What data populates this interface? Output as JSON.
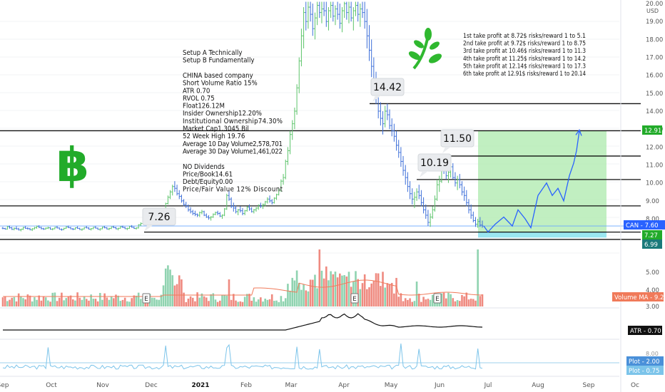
{
  "chart_data": {
    "type": "candlestick",
    "symbol": "CAN",
    "currency": "USD",
    "price_axis": {
      "range": [
        3.2,
        20.1
      ],
      "ticks": [
        "20.00",
        "19.00",
        "18.00",
        "17.00",
        "16.00",
        "15.00",
        "14.00",
        "13.00",
        "12.00",
        "11.00",
        "10.00",
        "9.00",
        "8.00",
        "5.00",
        "4.00",
        "3.00"
      ]
    },
    "time_axis": {
      "labels": [
        "Sep",
        "Oct",
        "Nov",
        "Dec",
        "2021",
        "Feb",
        "Mar",
        "Apr",
        "May",
        "Jun",
        "Jul",
        "Aug",
        "Sep",
        "Oc"
      ]
    },
    "candles": [
      [
        7.48,
        7.55,
        7.42,
        7.46
      ],
      [
        7.46,
        7.5,
        7.4,
        7.43
      ],
      [
        7.43,
        7.6,
        7.4,
        7.56
      ],
      [
        7.56,
        7.62,
        7.45,
        7.5
      ],
      [
        7.5,
        7.55,
        7.38,
        7.41
      ],
      [
        7.41,
        7.52,
        7.36,
        7.47
      ],
      [
        7.47,
        7.58,
        7.4,
        7.44
      ],
      [
        7.44,
        7.5,
        7.35,
        7.38
      ],
      [
        7.38,
        7.45,
        7.3,
        7.42
      ],
      [
        7.42,
        7.55,
        7.38,
        7.52
      ],
      [
        7.52,
        7.6,
        7.44,
        7.47
      ],
      [
        7.47,
        7.53,
        7.4,
        7.45
      ],
      [
        7.45,
        7.5,
        7.36,
        7.39
      ],
      [
        7.39,
        7.48,
        7.32,
        7.44
      ],
      [
        7.44,
        7.55,
        7.41,
        7.5
      ],
      [
        7.5,
        7.62,
        7.45,
        7.58
      ],
      [
        7.58,
        7.64,
        7.48,
        7.52
      ],
      [
        7.52,
        7.56,
        7.41,
        7.45
      ],
      [
        7.45,
        7.5,
        7.38,
        7.43
      ],
      [
        7.43,
        7.52,
        7.4,
        7.48
      ],
      [
        7.48,
        7.56,
        7.43,
        7.5
      ],
      [
        7.5,
        7.54,
        7.4,
        7.42
      ],
      [
        7.42,
        7.48,
        7.36,
        7.44
      ],
      [
        7.44,
        7.55,
        7.42,
        7.53
      ],
      [
        7.53,
        7.6,
        7.46,
        7.49
      ],
      [
        7.49,
        7.52,
        7.4,
        7.41
      ],
      [
        7.41,
        7.46,
        7.34,
        7.4
      ],
      [
        7.4,
        7.5,
        7.37,
        7.47
      ],
      [
        7.47,
        7.58,
        7.44,
        7.55
      ],
      [
        7.55,
        7.62,
        7.48,
        7.51
      ],
      [
        7.51,
        7.55,
        7.42,
        7.44
      ],
      [
        7.44,
        7.49,
        7.37,
        7.42
      ],
      [
        7.42,
        7.52,
        7.39,
        7.5
      ],
      [
        7.5,
        7.58,
        7.45,
        7.47
      ],
      [
        7.47,
        7.5,
        7.38,
        7.4
      ],
      [
        7.4,
        7.46,
        7.33,
        7.43
      ],
      [
        7.43,
        7.54,
        7.41,
        7.52
      ],
      [
        7.52,
        7.6,
        7.47,
        7.49
      ],
      [
        7.49,
        7.53,
        7.4,
        7.42
      ],
      [
        7.42,
        7.48,
        7.35,
        7.45
      ],
      [
        7.45,
        7.55,
        7.42,
        7.53
      ],
      [
        7.53,
        7.59,
        7.46,
        7.48
      ],
      [
        7.48,
        7.51,
        7.39,
        7.41
      ],
      [
        7.41,
        7.47,
        7.34,
        7.44
      ],
      [
        7.44,
        7.56,
        7.42,
        7.54
      ],
      [
        7.54,
        7.6,
        7.47,
        7.5
      ],
      [
        7.5,
        7.54,
        7.41,
        7.43
      ],
      [
        7.43,
        7.5,
        7.37,
        7.46
      ],
      [
        7.46,
        7.57,
        7.43,
        7.55
      ],
      [
        7.55,
        7.61,
        7.48,
        7.51
      ],
      [
        7.51,
        7.55,
        7.42,
        7.44
      ],
      [
        7.44,
        7.5,
        7.36,
        7.47
      ],
      [
        7.47,
        7.58,
        7.45,
        7.56
      ],
      [
        7.56,
        7.62,
        7.49,
        7.52
      ],
      [
        7.52,
        7.56,
        7.43,
        7.45
      ],
      [
        7.45,
        7.5,
        7.37,
        7.47
      ],
      [
        7.47,
        7.6,
        7.45,
        7.58
      ],
      [
        7.58,
        7.65,
        7.5,
        7.53
      ],
      [
        7.53,
        7.57,
        7.44,
        7.46
      ],
      [
        7.46,
        7.52,
        7.4,
        7.49
      ],
      [
        7.49,
        7.7,
        7.46,
        7.66
      ],
      [
        7.66,
        7.8,
        7.6,
        7.74
      ],
      [
        7.74,
        7.9,
        7.68,
        7.85
      ],
      [
        7.85,
        7.95,
        7.7,
        7.78
      ],
      [
        7.78,
        7.88,
        7.6,
        7.66
      ],
      [
        7.66,
        7.8,
        7.55,
        7.76
      ],
      [
        7.76,
        7.92,
        7.7,
        7.88
      ],
      [
        7.88,
        8.0,
        7.8,
        7.95
      ],
      [
        7.95,
        8.1,
        7.88,
        8.05
      ],
      [
        8.05,
        8.25,
        7.98,
        8.2
      ],
      [
        8.2,
        8.4,
        8.1,
        8.35
      ],
      [
        8.35,
        8.6,
        8.3,
        8.55
      ],
      [
        8.55,
        8.9,
        8.45,
        8.85
      ],
      [
        8.85,
        9.3,
        8.8,
        9.2
      ],
      [
        9.2,
        9.6,
        9.1,
        9.5
      ],
      [
        9.5,
        9.9,
        9.3,
        9.8
      ],
      [
        9.8,
        10.1,
        9.5,
        9.7
      ],
      [
        9.7,
        9.9,
        9.3,
        9.4
      ],
      [
        9.4,
        9.6,
        9.1,
        9.25
      ],
      [
        9.25,
        9.35,
        8.9,
        9.0
      ],
      [
        9.0,
        9.1,
        8.7,
        8.8
      ],
      [
        8.8,
        8.95,
        8.6,
        8.7
      ],
      [
        8.7,
        8.8,
        8.4,
        8.5
      ],
      [
        8.5,
        8.65,
        8.3,
        8.4
      ],
      [
        8.4,
        8.5,
        8.2,
        8.3
      ],
      [
        8.3,
        8.45,
        8.15,
        8.25
      ],
      [
        8.25,
        8.3,
        8.1,
        8.2
      ],
      [
        8.2,
        8.4,
        8.1,
        8.35
      ],
      [
        8.35,
        8.5,
        8.25,
        8.4
      ],
      [
        8.4,
        8.45,
        8.15,
        8.2
      ],
      [
        8.2,
        8.3,
        8.05,
        8.1
      ],
      [
        8.1,
        8.2,
        7.95,
        8.05
      ],
      [
        8.05,
        8.15,
        7.9,
        8.1
      ],
      [
        8.1,
        8.3,
        8.05,
        8.25
      ],
      [
        8.25,
        8.4,
        8.2,
        8.35
      ],
      [
        8.35,
        8.45,
        8.2,
        8.3
      ],
      [
        8.3,
        8.38,
        8.1,
        8.15
      ],
      [
        8.15,
        8.25,
        8.0,
        8.2
      ],
      [
        8.2,
        8.6,
        8.15,
        8.55
      ],
      [
        8.55,
        9.4,
        8.5,
        9.3
      ],
      [
        9.3,
        9.6,
        9.0,
        9.1
      ],
      [
        9.1,
        9.2,
        8.6,
        8.7
      ],
      [
        8.7,
        8.9,
        8.4,
        8.6
      ],
      [
        8.6,
        8.75,
        8.3,
        8.4
      ],
      [
        8.4,
        8.55,
        8.2,
        8.5
      ],
      [
        8.5,
        8.7,
        8.35,
        8.45
      ],
      [
        8.45,
        8.6,
        8.2,
        8.3
      ],
      [
        8.3,
        8.5,
        8.2,
        8.45
      ],
      [
        8.45,
        8.7,
        8.4,
        8.65
      ],
      [
        8.65,
        8.8,
        8.45,
        8.55
      ],
      [
        8.55,
        8.65,
        8.35,
        8.4
      ],
      [
        8.4,
        8.55,
        8.3,
        8.5
      ],
      [
        8.5,
        8.65,
        8.4,
        8.6
      ],
      [
        8.6,
        8.8,
        8.5,
        8.75
      ],
      [
        8.75,
        8.9,
        8.6,
        8.7
      ],
      [
        8.7,
        8.85,
        8.55,
        8.8
      ],
      [
        8.8,
        9.0,
        8.7,
        8.95
      ],
      [
        8.95,
        9.2,
        8.85,
        9.1
      ],
      [
        9.1,
        9.3,
        8.9,
        9.0
      ],
      [
        9.0,
        9.1,
        8.8,
        8.9
      ],
      [
        8.9,
        9.2,
        8.85,
        9.15
      ],
      [
        9.15,
        9.4,
        9.05,
        9.35
      ],
      [
        9.35,
        9.7,
        9.3,
        9.6
      ],
      [
        9.6,
        10.2,
        9.5,
        10.1
      ],
      [
        10.1,
        10.5,
        9.9,
        10.3
      ],
      [
        10.3,
        11.3,
        10.2,
        11.2
      ],
      [
        11.2,
        12.0,
        11.0,
        11.8
      ],
      [
        11.8,
        12.9,
        11.6,
        12.7
      ],
      [
        12.7,
        13.5,
        12.4,
        13.3
      ],
      [
        13.3,
        14.2,
        13.0,
        14.0
      ],
      [
        14.0,
        15.5,
        13.8,
        15.3
      ],
      [
        15.3,
        17.0,
        15.0,
        16.8
      ],
      [
        16.8,
        18.6,
        16.5,
        18.2
      ],
      [
        18.2,
        19.8,
        17.5,
        19.5
      ],
      [
        19.5,
        20.1,
        18.5,
        19.0
      ],
      [
        19.0,
        20.1,
        18.6,
        19.8
      ],
      [
        19.8,
        20.1,
        19.0,
        19.4
      ],
      [
        19.4,
        20.0,
        18.2,
        18.6
      ],
      [
        18.6,
        19.5,
        18.0,
        19.2
      ],
      [
        19.2,
        20.1,
        18.8,
        19.9
      ],
      [
        19.9,
        20.1,
        19.2,
        19.5
      ],
      [
        19.5,
        20.1,
        18.9,
        19.7
      ],
      [
        19.7,
        20.1,
        19.3,
        19.6
      ],
      [
        19.6,
        20.1,
        18.7,
        19.0
      ],
      [
        19.0,
        19.8,
        18.5,
        19.6
      ],
      [
        19.6,
        20.1,
        19.2,
        19.9
      ],
      [
        19.9,
        20.1,
        19.0,
        19.3
      ],
      [
        19.3,
        19.9,
        18.8,
        19.7
      ],
      [
        19.7,
        20.1,
        19.1,
        19.4
      ],
      [
        19.4,
        20.0,
        18.6,
        18.9
      ],
      [
        18.9,
        19.8,
        18.4,
        19.6
      ],
      [
        19.6,
        20.1,
        19.2,
        20.0
      ],
      [
        20.0,
        20.1,
        19.1,
        19.5
      ],
      [
        19.5,
        20.1,
        18.9,
        19.8
      ],
      [
        19.8,
        20.1,
        19.0,
        19.2
      ],
      [
        19.2,
        19.8,
        18.5,
        19.6
      ],
      [
        19.6,
        20.1,
        19.3,
        19.9
      ],
      [
        19.9,
        20.1,
        19.0,
        19.4
      ],
      [
        19.4,
        20.0,
        18.7,
        19.7
      ],
      [
        19.7,
        20.1,
        19.2,
        19.5
      ],
      [
        19.5,
        20.1,
        18.6,
        19.0
      ],
      [
        19.0,
        19.7,
        17.5,
        18.2
      ],
      [
        18.2,
        18.8,
        16.8,
        17.4
      ],
      [
        17.4,
        18.0,
        15.9,
        16.5
      ],
      [
        16.5,
        17.0,
        15.0,
        15.6
      ],
      [
        15.6,
        16.2,
        14.4,
        14.9
      ],
      [
        14.9,
        15.2,
        13.6,
        14.0
      ],
      [
        14.0,
        14.5,
        13.2,
        13.6
      ],
      [
        13.6,
        14.0,
        12.7,
        13.3
      ],
      [
        13.3,
        14.3,
        13.1,
        14.0
      ],
      [
        14.0,
        14.42,
        13.5,
        13.8
      ],
      [
        13.8,
        14.1,
        13.0,
        13.2
      ],
      [
        13.2,
        13.6,
        12.6,
        12.9
      ],
      [
        12.9,
        13.3,
        12.3,
        12.6
      ],
      [
        12.6,
        12.9,
        11.8,
        12.1
      ],
      [
        12.1,
        12.4,
        11.4,
        11.7
      ],
      [
        11.7,
        12.0,
        10.9,
        11.2
      ],
      [
        11.2,
        11.5,
        10.4,
        10.7
      ],
      [
        10.7,
        11.0,
        9.9,
        10.3
      ],
      [
        10.3,
        10.6,
        9.5,
        9.8
      ],
      [
        9.8,
        10.1,
        9.1,
        9.4
      ],
      [
        9.4,
        9.7,
        8.8,
        9.1
      ],
      [
        9.1,
        9.5,
        8.6,
        9.2
      ],
      [
        9.2,
        9.7,
        9.0,
        9.5
      ],
      [
        9.5,
        9.9,
        9.1,
        9.3
      ],
      [
        9.3,
        9.6,
        8.7,
        8.9
      ],
      [
        8.9,
        9.2,
        8.3,
        8.5
      ],
      [
        8.5,
        8.8,
        8.0,
        8.2
      ],
      [
        8.2,
        8.5,
        7.6,
        7.8
      ],
      [
        7.8,
        8.3,
        7.55,
        8.1
      ],
      [
        8.1,
        8.7,
        8.0,
        8.5
      ],
      [
        8.5,
        9.3,
        8.4,
        9.1
      ],
      [
        9.1,
        10.19,
        9.0,
        9.9
      ],
      [
        9.9,
        10.4,
        9.5,
        10.1
      ],
      [
        10.1,
        11.5,
        10.0,
        11.2
      ],
      [
        11.2,
        11.4,
        10.5,
        10.7
      ],
      [
        10.7,
        11.0,
        10.2,
        10.4
      ],
      [
        10.4,
        10.8,
        10.0,
        10.6
      ],
      [
        10.6,
        11.2,
        10.3,
        10.9
      ],
      [
        10.9,
        11.1,
        10.2,
        10.3
      ],
      [
        10.3,
        10.6,
        9.8,
        10.0
      ],
      [
        10.0,
        10.4,
        9.6,
        10.2
      ],
      [
        10.2,
        10.5,
        9.7,
        9.9
      ],
      [
        9.9,
        10.1,
        9.3,
        9.5
      ],
      [
        9.5,
        9.8,
        9.0,
        9.3
      ],
      [
        9.3,
        9.6,
        8.7,
        8.9
      ],
      [
        8.9,
        9.1,
        8.3,
        8.5
      ],
      [
        8.5,
        8.8,
        8.0,
        8.2
      ],
      [
        8.2,
        8.4,
        7.8,
        7.9
      ],
      [
        7.9,
        8.1,
        7.55,
        7.7
      ],
      [
        7.7,
        8.0,
        7.5,
        7.85
      ],
      [
        7.85,
        8.1,
        7.55,
        7.65
      ],
      [
        7.65,
        7.9,
        7.5,
        7.6
      ]
    ],
    "volume_ma_label": "Volume MA",
    "volume_ma_value": "9.207M",
    "atr_label": "ATR",
    "atr_value": "0.70",
    "plot_label": "Plot",
    "plot_values": [
      "2.00",
      "0.75"
    ],
    "callouts": [
      "7.26",
      "14.42",
      "11.50",
      "10.19"
    ],
    "price_tags": [
      {
        "label": "CAN",
        "value": "7.60",
        "color": "#2962ff"
      },
      {
        "label": "",
        "value": "12.91",
        "color": "#22ab2a"
      },
      {
        "label": "",
        "value": "7.27",
        "color": "#22ab2a"
      },
      {
        "label": "",
        "value": "6.99",
        "color": "#1a7a7a"
      }
    ],
    "projection": {
      "points": [
        7.6,
        7.27,
        7.7,
        8.1,
        7.6,
        8.5,
        8.0,
        7.5,
        9.3,
        10.0,
        9.3,
        9.7,
        9.0,
        10.4,
        11.1,
        11.8,
        12.91
      ]
    },
    "horizontal_levels": [
      12.91,
      14.42,
      11.5,
      10.19,
      8.72,
      7.26,
      6.99
    ]
  },
  "notes_left": [
    "Setup A Technically",
    "Setup B Fundamentally",
    "",
    "CHINA based company",
    "Short Volume Ratio 15%",
    "ATR 0.70",
    "RVOL 0.75",
    "Float126.12M",
    "Insider Ownership12.20%",
    "Institutional Ownership74.30%",
    "Market Cap1.3045 Bil",
    "52 Week High 19.76",
    "Average 10 Day Volume2,578,701",
    "Average 30 Day Volume1,461,022",
    "",
    "NO Dividends",
    "Price/Book14.61",
    "Debt/Equity0.00",
    "Price/Fair Value 12% Discount"
  ],
  "notes_right": [
    "1st take profit at 8.72$ risks/reward 1 to 5.1",
    "2nd take profit at 9.72$ risks/reward 1 to 8.75",
    "3rd take profit at 10.46$ risks/reward 1 to 11.3",
    "4th take profit at 11.25$ risks/reward 1 to 14.2",
    "5th take profit at 12.14$ risks/reward 1 to 17.3",
    "6th take profit at 12.91$ risks/reward 1 to 20.14"
  ],
  "earnings_marker": "E",
  "icons": {
    "bitcoin": "bitcoin-icon",
    "leaf": "leaf-sprout-icon"
  },
  "colors": {
    "up": "#26a69a",
    "up_candle": "#5cc46a",
    "down": "#3d6fd9",
    "volume_up": "#8fd3b0",
    "volume_down": "#ef8a80",
    "profit_zone": "#b6ecb6",
    "stop_zone": "#8fe3ee",
    "bitcoin": "#22ab2a",
    "leaf": "#2fb82f"
  }
}
